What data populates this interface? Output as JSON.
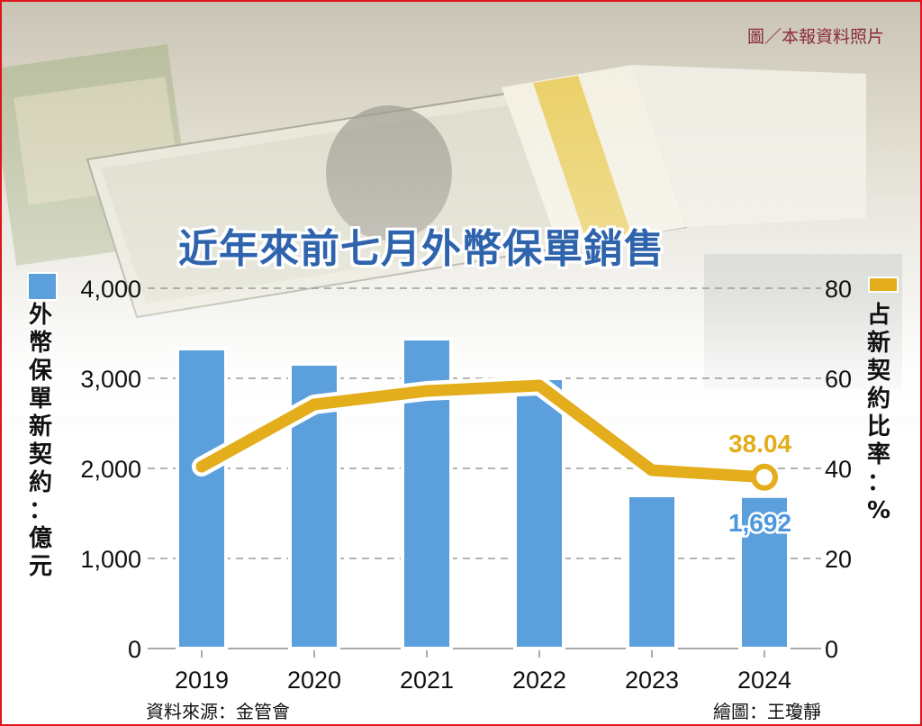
{
  "credit": "圖／本報資料照片",
  "title": "近年來前七月外幣保單銷售",
  "source": "資料來源：金管會",
  "drawer": "繪圖：王瓊靜",
  "colors": {
    "bar": "#5b9fdd",
    "line": "#e3ad1c",
    "title": "#2f64ad",
    "frame": "#e0141e"
  },
  "left_axis": {
    "label_chars": [
      "外",
      "幣",
      "保",
      "單",
      "新",
      "契",
      "約",
      "：",
      "億",
      "元"
    ],
    "ticks": [
      "4,000",
      "3,000",
      "2,000",
      "1,000",
      "0"
    ]
  },
  "right_axis": {
    "label_chars": [
      "占",
      "新",
      "契",
      "約",
      "比",
      "率",
      "：",
      "%"
    ],
    "ticks": [
      "80",
      "60",
      "40",
      "20",
      "0"
    ]
  },
  "annotations": {
    "line_last": "38.04",
    "bar_last": "1,692"
  },
  "chart_data": {
    "type": "bar",
    "title": "近年來前七月外幣保單銷售",
    "categories": [
      "2019",
      "2020",
      "2021",
      "2022",
      "2023",
      "2024"
    ],
    "series": [
      {
        "name": "外幣保單新契約：億元",
        "type": "bar",
        "axis": "left",
        "values": [
          3330,
          3160,
          3440,
          3000,
          1700,
          1692
        ]
      },
      {
        "name": "占新契約比率：%",
        "type": "line",
        "axis": "right",
        "values": [
          40.4,
          54.2,
          57.2,
          58.4,
          39.6,
          38.04
        ]
      }
    ],
    "xlabel": "",
    "ylabel_left": "外幣保單新契約：億元",
    "ylabel_right": "占新契約比率：%",
    "ylim_left": [
      0,
      4000
    ],
    "ylim_right": [
      0,
      80
    ],
    "grid": "dashed horizontal",
    "data_labels": {
      "2024_bar": "1,692",
      "2024_line": "38.04"
    },
    "source": "資料來源：金管會"
  }
}
